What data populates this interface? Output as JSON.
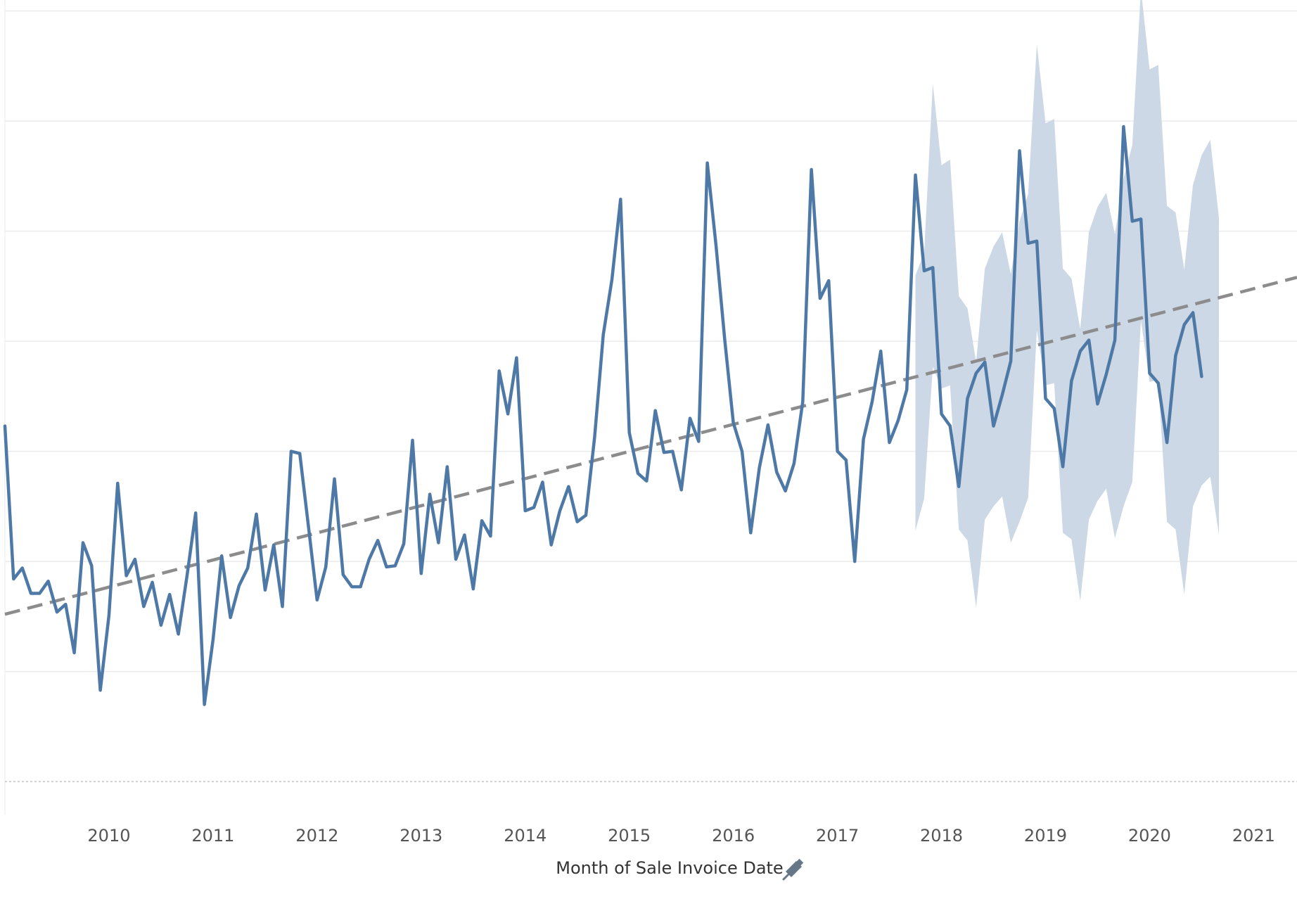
{
  "chart_data": {
    "type": "line",
    "title": "",
    "xlabel": "Month of Sale Invoice Date",
    "ylabel": "",
    "x_axis_type": "time",
    "xlim": [
      "2009-01",
      "2021-06"
    ],
    "ylim": [
      -0.3,
      7.1
    ],
    "y_zero": 0,
    "x_tick_labels": [
      "2010",
      "2011",
      "2012",
      "2013",
      "2014",
      "2015",
      "2016",
      "2017",
      "2018",
      "2019",
      "2020",
      "2021"
    ],
    "y_tick_labels": [],
    "y_gridlines": [
      1,
      2,
      3,
      4,
      5,
      6,
      7
    ],
    "grid": true,
    "legend": "none",
    "axis_title_icon": "pin-icon",
    "colors": {
      "series": "#4e79a7",
      "band": "#c9d6e4",
      "trend": "#8c8c8c",
      "grid": "#ebebeb",
      "zero_line": "#b0b0b0",
      "axis_text": "#555555",
      "title_text": "#333333"
    },
    "series": [
      {
        "role": "actual_and_forecast",
        "start": "2009-01",
        "frequency": "monthly",
        "values": [
          3.23,
          1.84,
          1.94,
          1.71,
          1.71,
          1.82,
          1.54,
          1.61,
          1.17,
          2.17,
          1.96,
          0.83,
          1.51,
          2.71,
          1.87,
          2.02,
          1.59,
          1.81,
          1.42,
          1.7,
          1.34,
          1.87,
          2.44,
          0.7,
          1.29,
          2.05,
          1.49,
          1.78,
          1.94,
          2.43,
          1.74,
          2.15,
          1.59,
          3.0,
          2.98,
          2.32,
          1.65,
          1.95,
          2.75,
          1.88,
          1.77,
          1.77,
          2.02,
          2.19,
          1.95,
          1.96,
          2.16,
          3.1,
          1.89,
          2.61,
          2.17,
          2.86,
          2.02,
          2.24,
          1.75,
          2.37,
          2.23,
          3.73,
          3.34,
          3.85,
          2.46,
          2.49,
          2.72,
          2.15,
          2.46,
          2.68,
          2.36,
          2.42,
          3.13,
          4.06,
          4.56,
          5.29,
          3.17,
          2.8,
          2.73,
          3.37,
          2.99,
          3.0,
          2.65,
          3.3,
          3.09,
          5.62,
          4.87,
          4.02,
          3.26,
          3.0,
          2.26,
          2.85,
          3.24,
          2.81,
          2.64,
          2.89,
          3.45,
          5.56,
          4.39,
          4.55,
          3.0,
          2.92,
          2.0,
          3.11,
          3.45,
          3.91,
          3.08,
          3.28,
          3.56,
          5.51,
          4.64,
          4.67,
          3.34,
          3.23,
          2.68,
          3.48,
          3.71,
          3.81,
          3.23,
          3.51,
          3.82,
          5.73,
          4.89,
          4.91,
          3.48,
          3.39,
          2.86,
          3.64,
          3.91,
          4.01,
          3.43,
          3.7,
          4.01,
          5.95,
          5.09,
          5.11,
          3.71,
          3.62,
          3.08,
          3.87,
          4.15,
          4.26,
          3.68
        ]
      },
      {
        "role": "forecast_band_upper",
        "start": "2017-10",
        "frequency": "monthly",
        "values": [
          4.6,
          4.8,
          6.34,
          5.6,
          5.65,
          4.41,
          4.3,
          3.81,
          4.66,
          4.86,
          4.99,
          4.61,
          5.09,
          5.34,
          6.7,
          5.98,
          6.02,
          4.66,
          4.57,
          4.11,
          4.99,
          5.22,
          5.35,
          4.97,
          5.48,
          5.78,
          7.2,
          6.47,
          6.51,
          5.23,
          5.17,
          4.65,
          5.42,
          5.69,
          5.83,
          5.12
        ]
      },
      {
        "role": "forecast_band_lower",
        "start": "2017-10",
        "frequency": "monthly",
        "values": [
          2.28,
          2.57,
          3.77,
          3.57,
          3.6,
          2.29,
          2.19,
          1.58,
          2.38,
          2.5,
          2.59,
          2.17,
          2.36,
          2.58,
          4.1,
          3.6,
          3.62,
          2.26,
          2.2,
          1.64,
          2.38,
          2.55,
          2.66,
          2.21,
          2.5,
          2.72,
          4.19,
          3.63,
          3.65,
          2.36,
          2.29,
          1.7,
          2.5,
          2.69,
          2.77,
          2.24
        ]
      },
      {
        "role": "trend_line",
        "x": [
          "2009-01",
          "2021-06"
        ],
        "values": [
          1.52,
          4.58
        ]
      }
    ]
  }
}
